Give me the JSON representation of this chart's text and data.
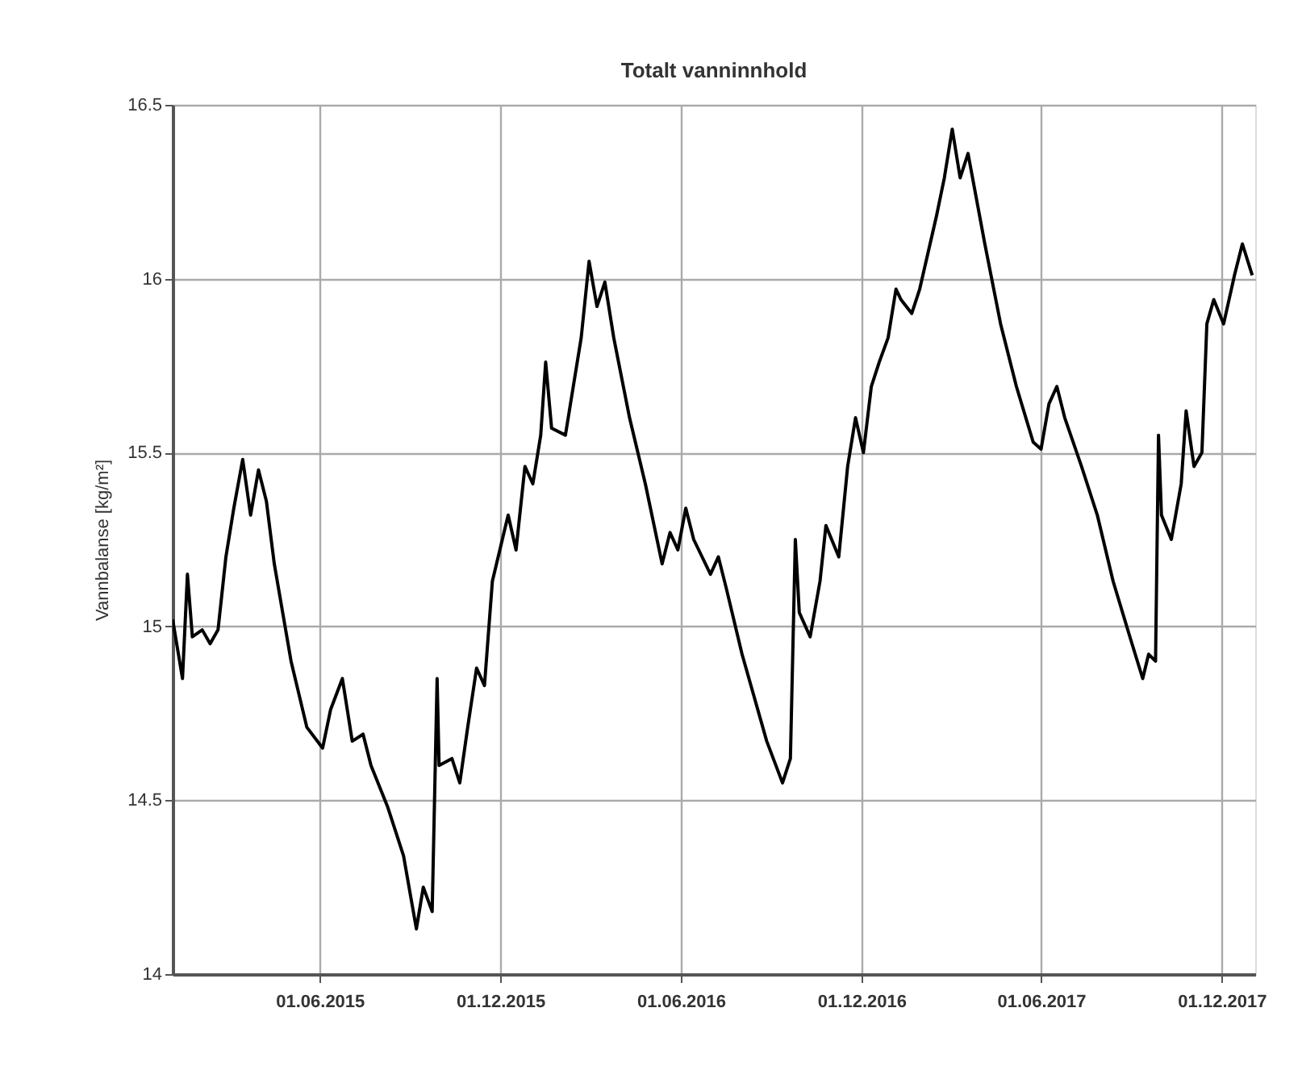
{
  "chart_data": {
    "type": "line",
    "title": "Totalt vanninnhold",
    "ylabel": "Vannbalanse [kg/m²]",
    "x": [
      "2015-01-03",
      "2015-01-13",
      "2015-01-18",
      "2015-01-23",
      "2015-02-02",
      "2015-02-10",
      "2015-02-18",
      "2015-02-26",
      "2015-03-06",
      "2015-03-15",
      "2015-03-23",
      "2015-03-31",
      "2015-04-08",
      "2015-04-16",
      "2015-05-03",
      "2015-05-19",
      "2015-06-04",
      "2015-06-12",
      "2015-06-24",
      "2015-07-04",
      "2015-07-15",
      "2015-07-23",
      "2015-08-09",
      "2015-08-25",
      "2015-09-07",
      "2015-09-14",
      "2015-09-23",
      "2015-09-28",
      "2015-09-30",
      "2015-10-13",
      "2015-10-21",
      "2015-10-29",
      "2015-11-07",
      "2015-11-15",
      "2015-11-23",
      "2015-12-09",
      "2015-12-17",
      "2015-12-26",
      "2016-01-03",
      "2016-01-11",
      "2016-01-16",
      "2016-01-22",
      "2016-02-05",
      "2016-02-13",
      "2016-02-21",
      "2016-02-29",
      "2016-03-08",
      "2016-03-16",
      "2016-03-25",
      "2016-04-10",
      "2016-04-26",
      "2016-05-13",
      "2016-05-21",
      "2016-05-29",
      "2016-06-06",
      "2016-06-14",
      "2016-07-01",
      "2016-07-09",
      "2016-07-17",
      "2016-08-02",
      "2016-08-27",
      "2016-09-12",
      "2016-09-20",
      "2016-09-25",
      "2016-09-29",
      "2016-10-10",
      "2016-10-20",
      "2016-10-26",
      "2016-11-08",
      "2016-11-17",
      "2016-11-25",
      "2016-12-03",
      "2016-12-11",
      "2016-12-19",
      "2016-12-28",
      "2017-01-05",
      "2017-01-10",
      "2017-01-21",
      "2017-01-29",
      "2017-02-15",
      "2017-02-23",
      "2017-03-03",
      "2017-03-11",
      "2017-03-19",
      "2017-04-05",
      "2017-04-21",
      "2017-05-07",
      "2017-05-24",
      "2017-06-01",
      "2017-06-09",
      "2017-06-17",
      "2017-06-25",
      "2017-07-12",
      "2017-07-28",
      "2017-08-13",
      "2017-08-30",
      "2017-09-12",
      "2017-09-18",
      "2017-09-25",
      "2017-09-28",
      "2017-10-01",
      "2017-10-11",
      "2017-10-21",
      "2017-10-26",
      "2017-11-03",
      "2017-11-11",
      "2017-11-16",
      "2017-11-23",
      "2017-12-03",
      "2017-12-14",
      "2017-12-22",
      "2018-01-01"
    ],
    "series": [
      {
        "color": "#000000",
        "values": [
          15.02,
          14.85,
          15.15,
          14.97,
          14.99,
          14.95,
          14.99,
          15.2,
          15.34,
          15.48,
          15.32,
          15.45,
          15.36,
          15.18,
          14.9,
          14.71,
          14.65,
          14.76,
          14.85,
          14.67,
          14.69,
          14.6,
          14.48,
          14.34,
          14.13,
          14.25,
          14.18,
          14.85,
          14.6,
          14.62,
          14.55,
          14.71,
          14.88,
          14.83,
          15.13,
          15.32,
          15.22,
          15.46,
          15.41,
          15.55,
          15.76,
          15.57,
          15.55,
          15.69,
          15.83,
          16.05,
          15.92,
          15.99,
          15.83,
          15.6,
          15.41,
          15.18,
          15.27,
          15.22,
          15.34,
          15.25,
          15.15,
          15.2,
          15.11,
          14.92,
          14.67,
          14.55,
          14.62,
          15.25,
          15.04,
          14.97,
          15.13,
          15.29,
          15.2,
          15.46,
          15.6,
          15.5,
          15.69,
          15.76,
          15.83,
          15.97,
          15.94,
          15.9,
          15.97,
          16.18,
          16.29,
          16.43,
          16.29,
          16.36,
          16.1,
          15.87,
          15.69,
          15.53,
          15.51,
          15.64,
          15.69,
          15.6,
          15.46,
          15.32,
          15.13,
          14.97,
          14.85,
          14.92,
          14.9,
          15.55,
          15.32,
          15.25,
          15.41,
          15.62,
          15.46,
          15.5,
          15.87,
          15.94,
          15.87,
          16.01,
          16.1,
          16.01
        ]
      }
    ],
    "xlim": [
      "2015-01-03",
      "2018-01-04"
    ],
    "xticks": [
      {
        "value": "2015-06-01",
        "label": "01.06.2015"
      },
      {
        "value": "2015-12-01",
        "label": "01.12.2015"
      },
      {
        "value": "2016-06-01",
        "label": "01.06.2016"
      },
      {
        "value": "2016-12-01",
        "label": "01.12.2016"
      },
      {
        "value": "2017-06-01",
        "label": "01.06.2017"
      },
      {
        "value": "2017-12-01",
        "label": "01.12.2017"
      }
    ],
    "ylim": [
      14,
      16.5
    ],
    "yticks": [
      14,
      14.5,
      15,
      15.5,
      16,
      16.5
    ],
    "grid": true,
    "line_style": "solid"
  }
}
